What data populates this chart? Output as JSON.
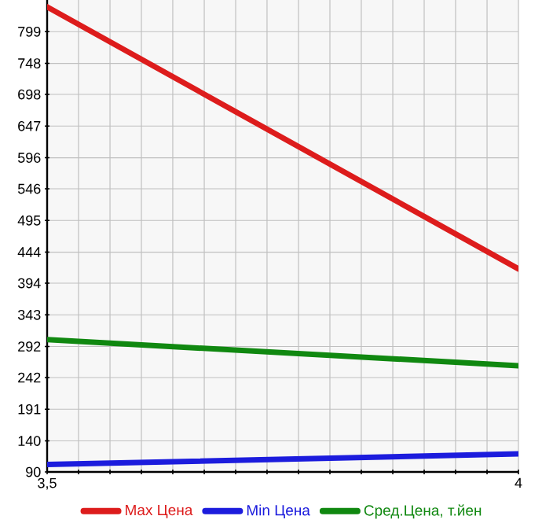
{
  "chart_data": {
    "type": "line",
    "x": [
      3.5,
      4
    ],
    "series": [
      {
        "name": "Max Цена",
        "color": "#dd1c1c",
        "values": [
          839,
          417
        ]
      },
      {
        "name": "Min Цена",
        "color": "#1c1cdd",
        "values": [
          102,
          119
        ]
      },
      {
        "name": "Сред.Цена, т.йен",
        "color": "#108810",
        "values": [
          303,
          261
        ]
      }
    ],
    "xlim": [
      3.5,
      4
    ],
    "xticks": [
      {
        "value": 3.5,
        "label": "3,5"
      },
      {
        "value": 3.5333,
        "label": null
      },
      {
        "value": 3.5667,
        "label": null
      },
      {
        "value": 3.6,
        "label": null
      },
      {
        "value": 3.6333,
        "label": null
      },
      {
        "value": 3.6667,
        "label": null
      },
      {
        "value": 3.7,
        "label": null
      },
      {
        "value": 3.7333,
        "label": null
      },
      {
        "value": 3.7667,
        "label": null
      },
      {
        "value": 3.8,
        "label": null
      },
      {
        "value": 3.8333,
        "label": null
      },
      {
        "value": 3.8667,
        "label": null
      },
      {
        "value": 3.9,
        "label": null
      },
      {
        "value": 3.9333,
        "label": null
      },
      {
        "value": 3.9667,
        "label": null
      },
      {
        "value": 4,
        "label": "4"
      }
    ],
    "ylim": [
      90,
      850
    ],
    "yticks": [
      90,
      140,
      191,
      242,
      292,
      343,
      394,
      444,
      495,
      546,
      596,
      647,
      698,
      748,
      799
    ],
    "grid": true,
    "legend": "bottom",
    "marker": "none",
    "line_style": "solid"
  }
}
